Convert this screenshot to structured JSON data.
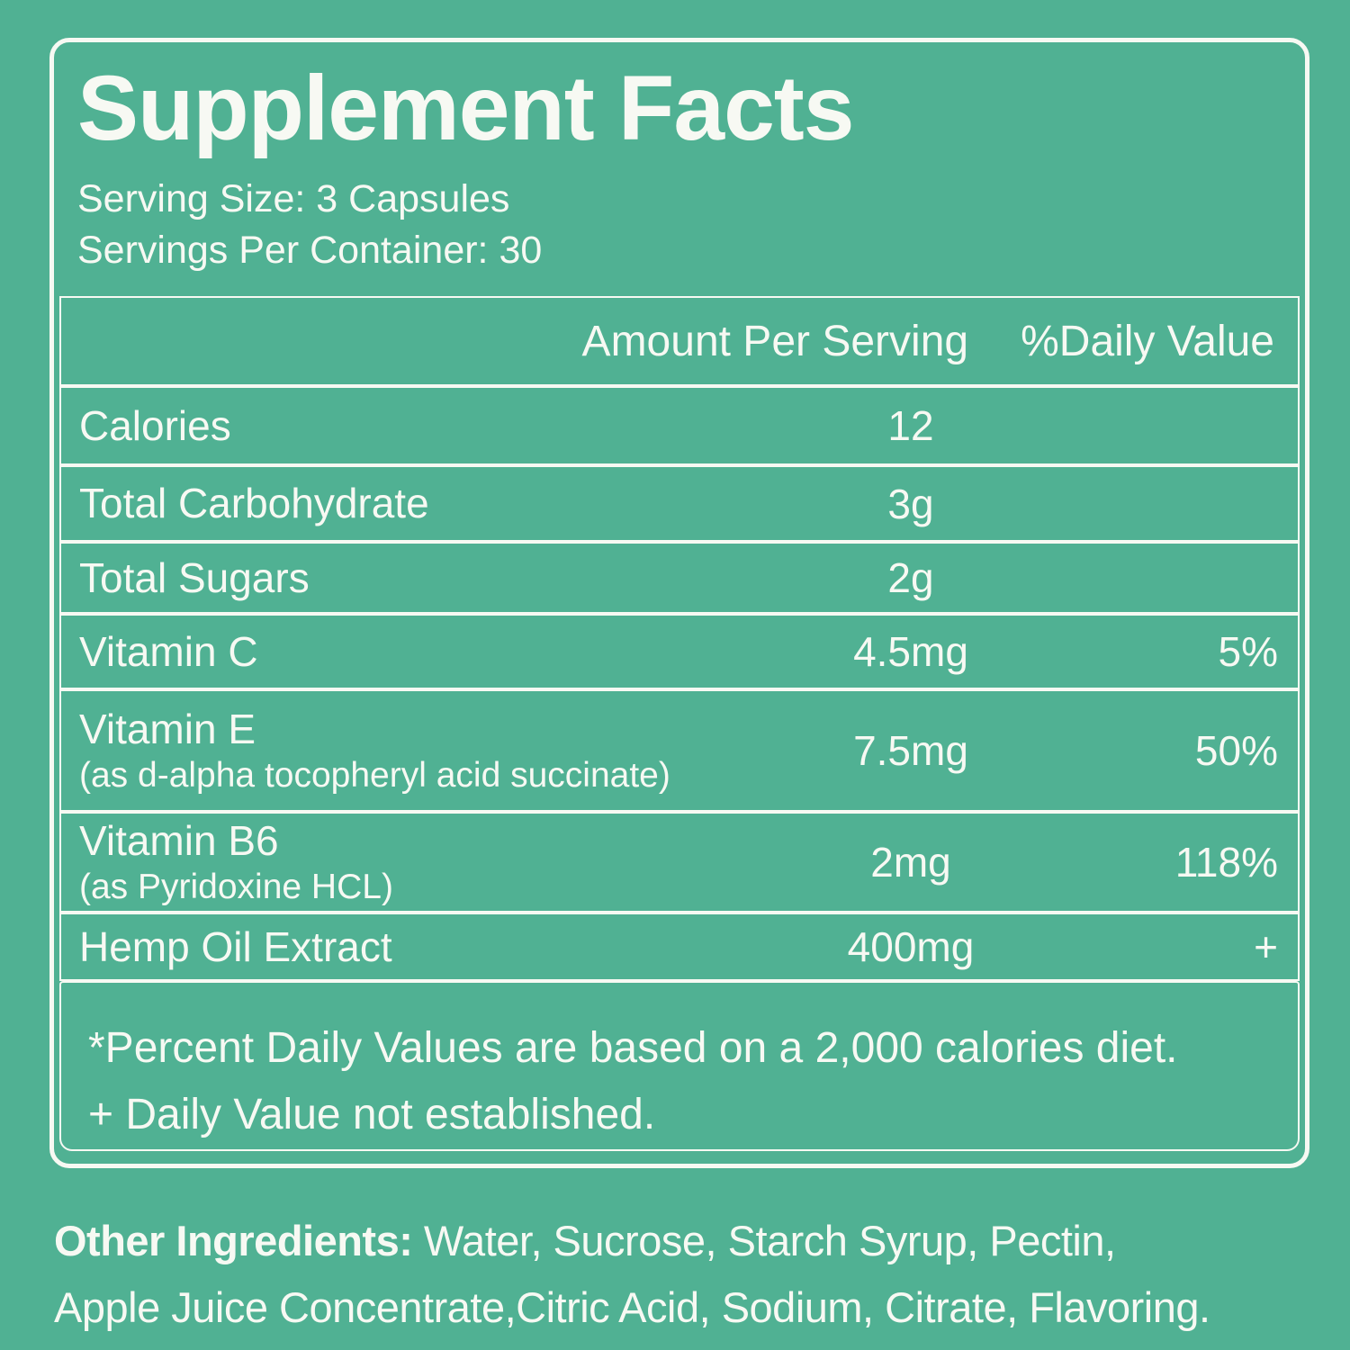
{
  "theme": {
    "background_color": "#50B193",
    "text_color": "#F7F9F3",
    "border_color": "#F7F9F3"
  },
  "panel": {
    "title": "Supplement Facts",
    "serving_size": "Serving Size: 3 Capsules",
    "servings_per_container": "Servings Per Container: 30",
    "header": {
      "amount": "Amount Per Serving",
      "daily_value": "%Daily Value"
    },
    "rows": [
      {
        "label": "Calories",
        "amount": "12",
        "dv": ""
      },
      {
        "label": "Total Carbohydrate",
        "amount": "3g",
        "dv": ""
      },
      {
        "label": "Total Sugars",
        "amount": "2g",
        "dv": ""
      },
      {
        "label": "Vitamin C",
        "amount": "4.5mg",
        "dv": "5%"
      },
      {
        "label": "Vitamin E",
        "sub": "(as d-alpha tocopheryl acid succinate)",
        "amount": "7.5mg",
        "dv": "50%"
      },
      {
        "label": "Vitamin B6",
        "sub": "(as Pyridoxine HCL)",
        "amount": "2mg",
        "dv": "118%"
      },
      {
        "label": "Hemp Oil Extract",
        "amount": "400mg",
        "dv": "+"
      }
    ],
    "footnotes": [
      "*Percent Daily Values are based on a 2,000 calories diet.",
      "+ Daily Value not established."
    ]
  },
  "ingredients": {
    "heading": "Other Ingredients:",
    "line1": " Water, Sucrose, Starch Syrup, Pectin,",
    "line2": "Apple Juice Concentrate,Citric Acid, Sodium, Citrate, Flavoring."
  }
}
